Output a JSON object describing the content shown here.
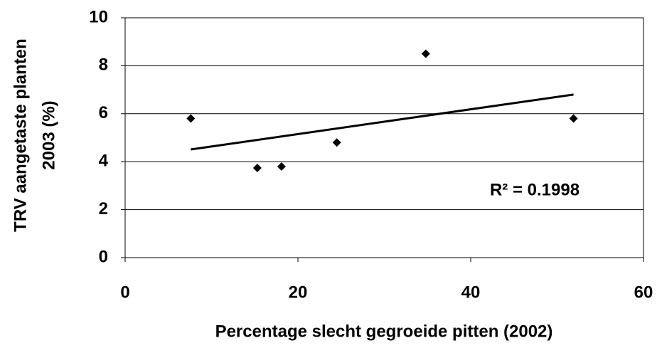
{
  "chart_data": {
    "type": "scatter",
    "xlabel": "Percentage slecht gegroeide pitten (2002)",
    "ylabel": [
      "TRV aangetaste planten",
      "2003  (%)"
    ],
    "x": [
      7.6,
      15.3,
      18.1,
      24.5,
      34.8,
      51.9
    ],
    "values": [
      5.8,
      3.74,
      3.8,
      4.8,
      8.5,
      5.8
    ],
    "color": "#000000",
    "trendline": {
      "x": [
        7.6,
        51.9
      ],
      "values": [
        4.51,
        6.8
      ],
      "color": "#000000"
    },
    "annotation": "R² = 0.1998",
    "xlim": [
      0,
      60
    ],
    "xticks": [
      0,
      20,
      40,
      60
    ],
    "ylim": [
      0,
      10
    ],
    "yticks": [
      0,
      2,
      4,
      6,
      8,
      10
    ],
    "grid": true
  }
}
